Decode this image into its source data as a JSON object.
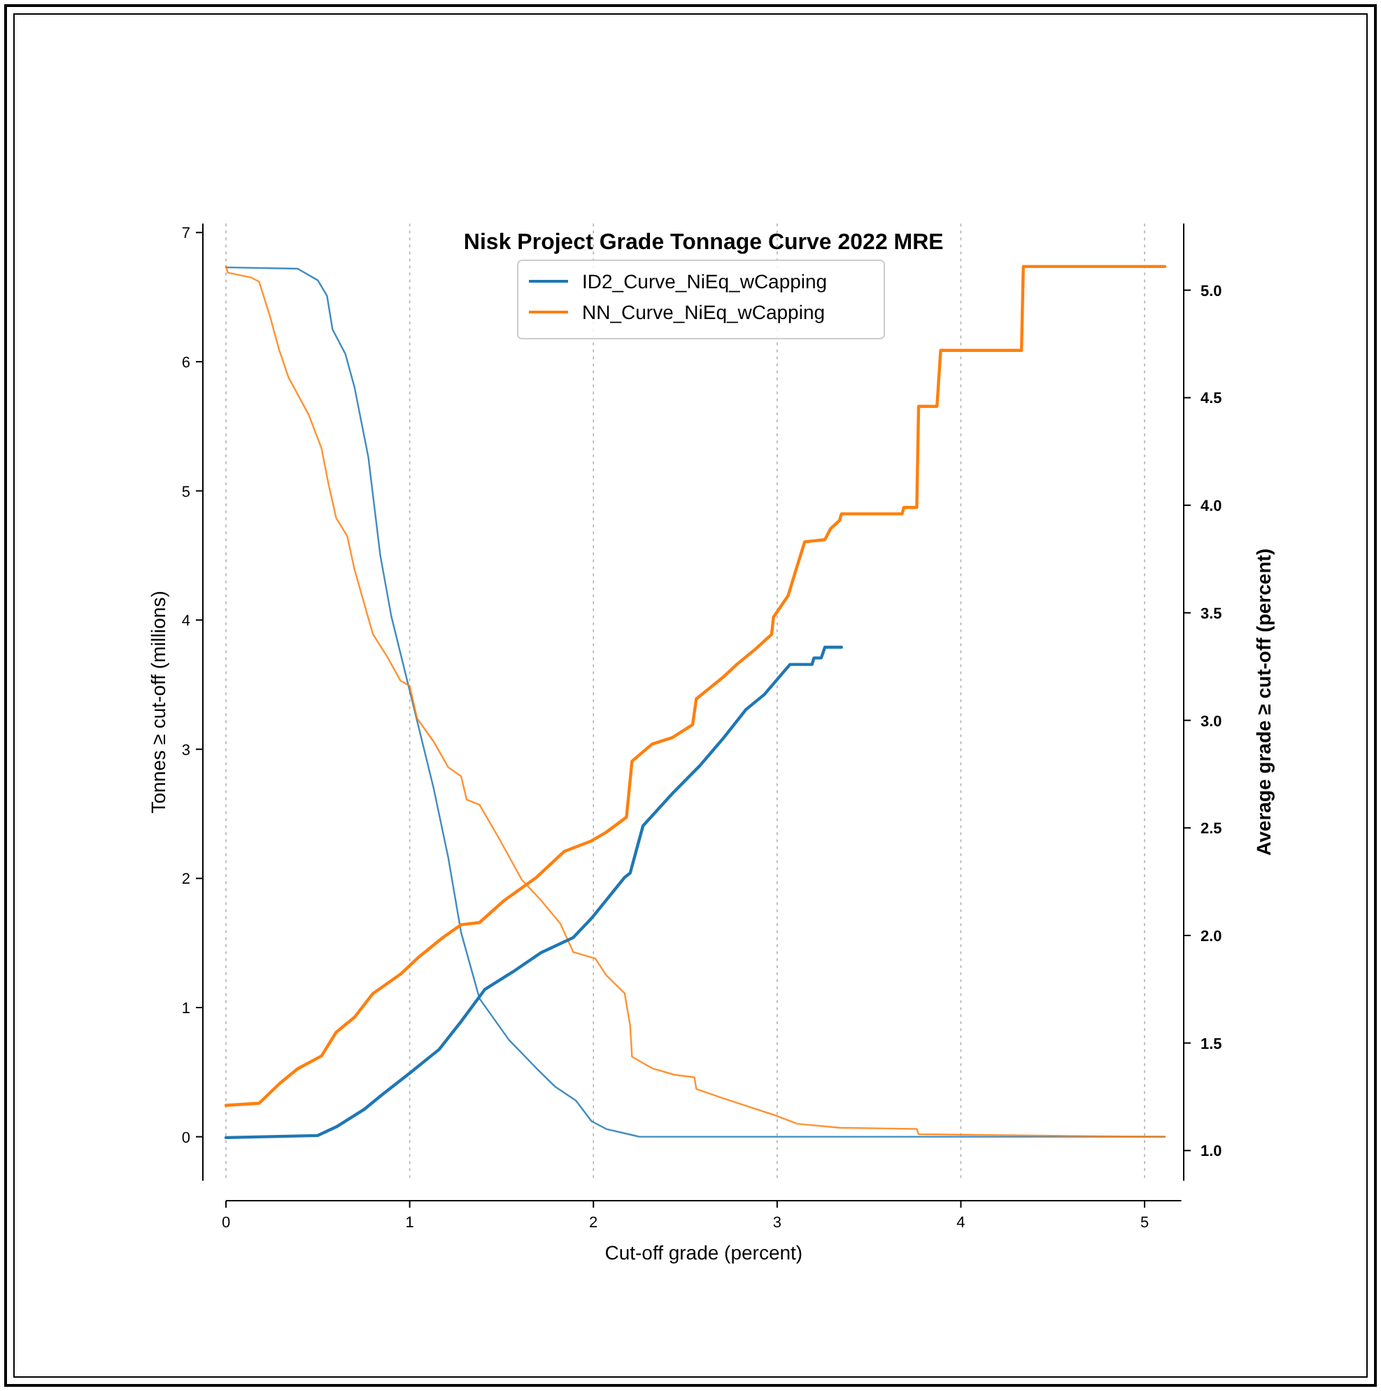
{
  "chart_data": {
    "type": "line",
    "title": "Nisk Project Grade Tonnage Curve 2022 MRE",
    "xlabel": "Cut-off grade (percent)",
    "ylabel": "Tonnes ≥ cut-off (millions)",
    "y2label": "Average grade ≥ cut-off (percent)",
    "xlim": [
      0,
      5.2
    ],
    "xticks": [
      0,
      1,
      2,
      3,
      4,
      5
    ],
    "ylim": [
      -0.34,
      7.07
    ],
    "yticks": [
      0,
      1,
      2,
      3,
      4,
      5,
      6,
      7
    ],
    "y2lim": [
      0.86,
      5.31
    ],
    "y2ticks": [
      {
        "value": 1,
        "label": "1.0"
      },
      {
        "value": 1.5,
        "label": "1.5"
      },
      {
        "value": 2,
        "label": "2.0"
      },
      {
        "value": 2.5,
        "label": "2.5"
      },
      {
        "value": 3,
        "label": "3.0"
      },
      {
        "value": 3.5,
        "label": "3.5"
      },
      {
        "value": 4,
        "label": "4.0"
      },
      {
        "value": 4.5,
        "label": "4.5"
      },
      {
        "value": 5,
        "label": "5.0"
      }
    ],
    "grid": "x",
    "legend": "top",
    "line_style": "solid",
    "marker": "none",
    "series": [
      {
        "name": "ID2_Curve_NiEq_wCapping",
        "color": "#1f77b4",
        "x": [
          0,
          0.39,
          0.5,
          0.55,
          0.58,
          0.65,
          0.7,
          0.775,
          0.84,
          0.9,
          1.03,
          1.13,
          1.21,
          1.28,
          1.38,
          1.54,
          1.69,
          1.79,
          1.905,
          1.99,
          2.07,
          2.22,
          2.25,
          5.11
        ],
        "values": [
          6.73,
          6.72,
          6.63,
          6.51,
          6.25,
          6.06,
          5.8,
          5.26,
          4.5,
          4.03,
          3.28,
          2.7,
          2.16,
          1.58,
          1.07,
          0.75,
          0.53,
          0.39,
          0.28,
          0.12,
          0.06,
          0.01,
          0,
          0
        ]
      },
      {
        "name": "NN_Curve_NiEq_wCapping",
        "color": "#ff7f0e",
        "x": [
          0,
          0.01,
          0.14,
          0.18,
          0.24,
          0.29,
          0.34,
          0.45,
          0.52,
          0.56,
          0.6,
          0.66,
          0.7,
          0.75,
          0.8,
          0.88,
          0.95,
          1.0,
          1.04,
          1.13,
          1.21,
          1.28,
          1.31,
          1.38,
          1.49,
          1.61,
          1.715,
          1.82,
          1.89,
          2.01,
          2.07,
          2.17,
          2.2,
          2.21,
          2.32,
          2.44,
          2.55,
          2.56,
          2.68,
          2.83,
          2.98,
          3.11,
          3.34,
          3.76,
          3.77,
          4.33,
          5.11
        ],
        "values": [
          6.74,
          6.69,
          6.65,
          6.62,
          6.35,
          6.09,
          5.88,
          5.59,
          5.33,
          5.04,
          4.79,
          4.65,
          4.39,
          4.14,
          3.89,
          3.71,
          3.53,
          3.49,
          3.24,
          3.06,
          2.86,
          2.79,
          2.61,
          2.57,
          2.3,
          1.99,
          1.83,
          1.65,
          1.43,
          1.38,
          1.25,
          1.11,
          0.86,
          0.62,
          0.53,
          0.48,
          0.46,
          0.37,
          0.31,
          0.24,
          0.17,
          0.1,
          0.07,
          0.06,
          0.02,
          0.01,
          0
        ]
      },
      {
        "color": "#1f77b4",
        "axis": "y2",
        "x": [
          0,
          0.5,
          0.6,
          0.75,
          0.85,
          1.0,
          1.16,
          1.28,
          1.41,
          1.56,
          1.715,
          1.89,
          1.99,
          2.17,
          2.2,
          2.27,
          2.43,
          2.58,
          2.71,
          2.83,
          2.93,
          3.07,
          3.19,
          3.2,
          3.24,
          3.26,
          3.35
        ],
        "values": [
          1.06,
          1.07,
          1.11,
          1.19,
          1.26,
          1.36,
          1.47,
          1.6,
          1.75,
          1.83,
          1.92,
          1.99,
          2.08,
          2.27,
          2.29,
          2.51,
          2.66,
          2.79,
          2.92,
          3.05,
          3.12,
          3.26,
          3.26,
          3.29,
          3.29,
          3.34,
          3.34
        ]
      },
      {
        "color": "#ff7f0e",
        "axis": "y2",
        "x": [
          0,
          0.18,
          0.29,
          0.39,
          0.52,
          0.6,
          0.7,
          0.8,
          0.95,
          1.05,
          1.18,
          1.28,
          1.38,
          1.51,
          1.69,
          1.84,
          1.99,
          2.07,
          2.18,
          2.21,
          2.32,
          2.43,
          2.54,
          2.56,
          2.705,
          2.78,
          2.88,
          2.97,
          2.98,
          3.06,
          3.11,
          3.15,
          3.26,
          3.29,
          3.34,
          3.35,
          3.68,
          3.69,
          3.76,
          3.77,
          3.87,
          3.89,
          4.33,
          4.34,
          5.11
        ],
        "values": [
          1.21,
          1.22,
          1.31,
          1.38,
          1.44,
          1.55,
          1.62,
          1.73,
          1.82,
          1.9,
          1.99,
          2.05,
          2.06,
          2.16,
          2.27,
          2.39,
          2.44,
          2.48,
          2.55,
          2.81,
          2.89,
          2.92,
          2.98,
          3.1,
          3.2,
          3.26,
          3.33,
          3.4,
          3.48,
          3.58,
          3.72,
          3.83,
          3.84,
          3.89,
          3.93,
          3.96,
          3.96,
          3.99,
          3.99,
          4.46,
          4.46,
          4.72,
          4.72,
          5.11,
          5.11
        ]
      }
    ]
  }
}
